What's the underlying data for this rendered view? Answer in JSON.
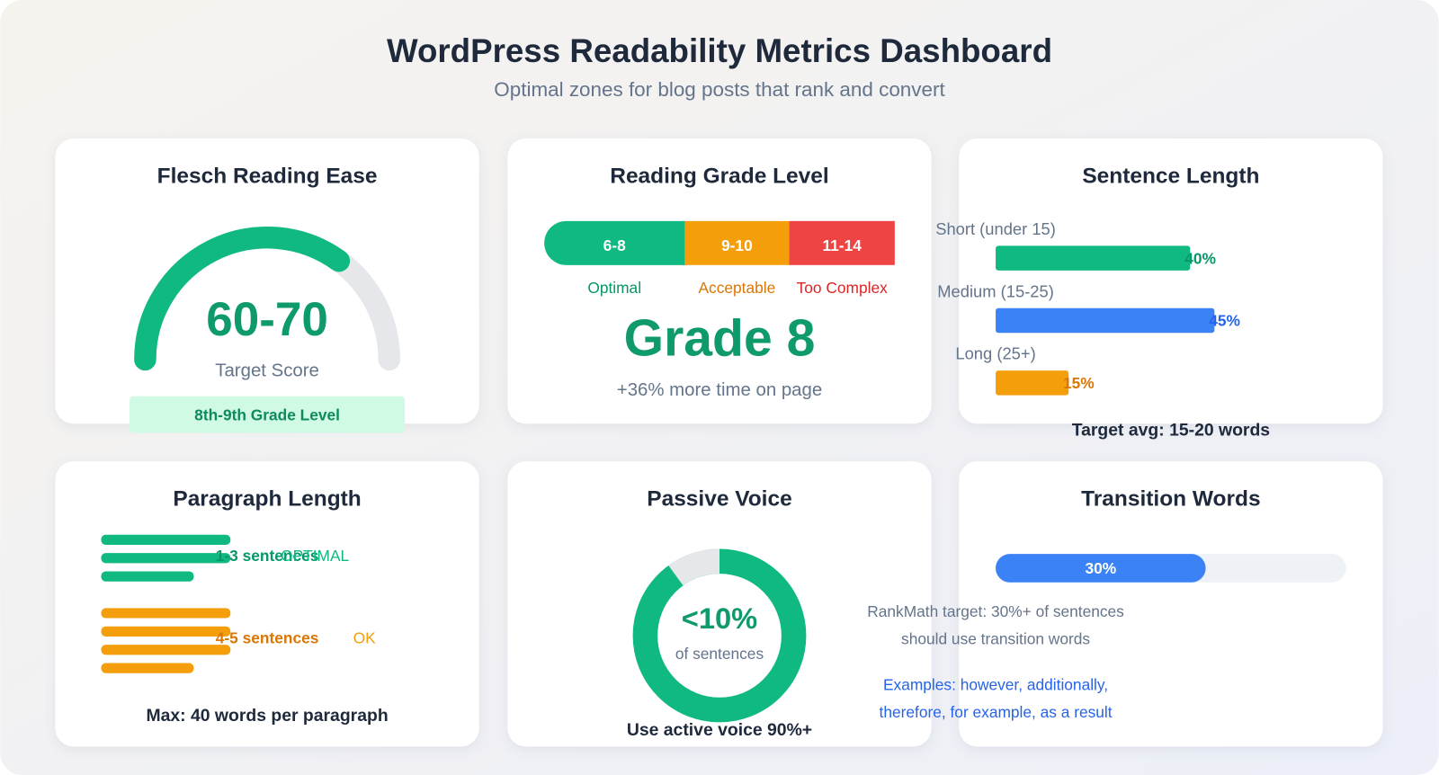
{
  "header": {
    "title": "WordPress Readability Metrics Dashboard",
    "subtitle": "Optimal zones for blog posts that rank and convert"
  },
  "cards": {
    "flesch": {
      "title": "Flesch Reading Ease",
      "gauge_value": 70,
      "gauge_range": [
        0,
        100
      ],
      "score": "60-70",
      "score_label": "Target Score",
      "badge": "8th-9th Grade Level"
    },
    "grade": {
      "title": "Reading Grade Level",
      "segments": [
        {
          "range": "6-8",
          "label": "Optimal",
          "color": "#10b981",
          "text_color": "#059669"
        },
        {
          "range": "9-10",
          "label": "Acceptable",
          "color": "#f59e0b",
          "text_color": "#d97706"
        },
        {
          "range": "11-14",
          "label": "Too Complex",
          "color": "#ef4444",
          "text_color": "#dc2626"
        }
      ],
      "headline": "Grade 8",
      "note": "+36% more time on page"
    },
    "sentence": {
      "title": "Sentence Length",
      "items": [
        {
          "label": "Short (under 15)",
          "value": 40,
          "value_label": "40%",
          "color": "#10b981",
          "text_color": "#059669"
        },
        {
          "label": "Medium (15-25)",
          "value": 45,
          "value_label": "45%",
          "color": "#3b82f6",
          "text_color": "#2563eb"
        },
        {
          "label": "Long (25+)",
          "value": 15,
          "value_label": "15%",
          "color": "#f59e0b",
          "text_color": "#d97706"
        }
      ],
      "footer": "Target avg: 15-20 words"
    },
    "paragraph": {
      "title": "Paragraph Length",
      "groups": [
        {
          "label": "1-3 sentences",
          "tag": "OPTIMAL",
          "color": "#10b981",
          "text_color": "#059669"
        },
        {
          "label": "4-5 sentences",
          "tag": "OK",
          "color": "#f59e0b",
          "text_color": "#d97706"
        }
      ],
      "footer": "Max: 40 words per paragraph"
    },
    "passive": {
      "title": "Passive Voice",
      "value": 10,
      "value_label": "<10%",
      "caption": "of sentences",
      "footer": "Use active voice 90%+"
    },
    "transition": {
      "title": "Transition Words",
      "value": 30,
      "value_label": "30%",
      "note_lines": [
        "RankMath target: 30%+ of sentences",
        "should use transition words"
      ],
      "example_lines": [
        "Examples: however, additionally,",
        "therefore, for example, as a result"
      ]
    }
  }
}
